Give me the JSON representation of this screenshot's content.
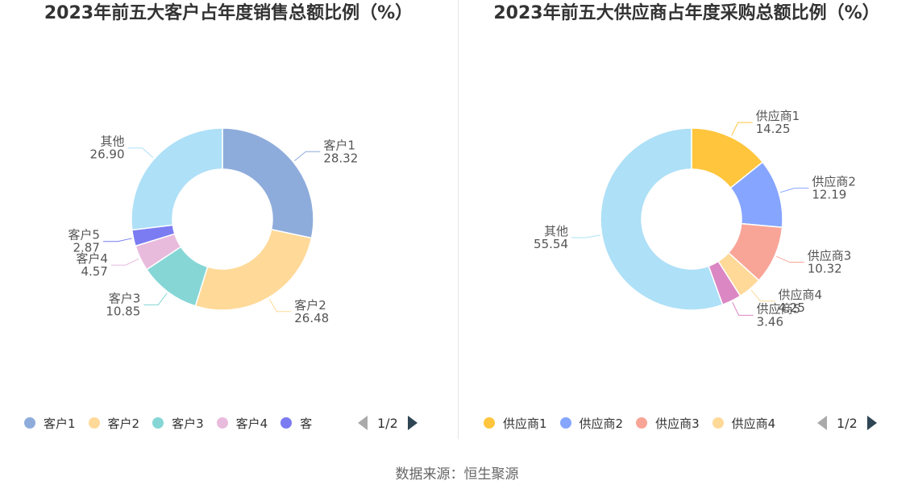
{
  "source_label": "数据来源：恒生聚源",
  "colors": {
    "left": [
      "#8eacdb",
      "#ffd998",
      "#86d6d6",
      "#e8bbdd",
      "#7b7cf2",
      "#aee0f7"
    ],
    "right": [
      "#ffc53d",
      "#85a5ff",
      "#f8a598",
      "#ffd998",
      "#db87c4",
      "#aee0f7"
    ],
    "pager_active": "#2f4554",
    "pager_inactive": "#aaaaaa"
  },
  "icons": {
    "prev": "triangle-left-icon",
    "next": "triangle-right-icon"
  },
  "charts": [
    {
      "title": "2023年前五大客户占年度销售总额比例（%）",
      "legend": [
        "客户1",
        "客户2",
        "客户3",
        "客户4",
        "客"
      ],
      "page_indicator": "1/2"
    },
    {
      "title": "2023年前五大供应商占年度采购总额比例（%）",
      "legend": [
        "供应商1",
        "供应商2",
        "供应商3",
        "供应商4"
      ],
      "page_indicator": "1/2"
    }
  ],
  "chart_data": [
    {
      "type": "pie",
      "title": "2023年前五大客户占年度销售总额比例（%）",
      "categories": [
        "客户1",
        "客户2",
        "客户3",
        "客户4",
        "客户5",
        "其他"
      ],
      "values": [
        28.32,
        26.48,
        10.85,
        4.57,
        2.87,
        26.9
      ],
      "value_labels": [
        "28.32",
        "26.48",
        "10.85",
        "4.57",
        "2.87",
        "26.90"
      ],
      "legend_position": "bottom"
    },
    {
      "type": "pie",
      "title": "2023年前五大供应商占年度采购总额比例（%）",
      "categories": [
        "供应商1",
        "供应商2",
        "供应商3",
        "供应商4",
        "供应商5",
        "其他"
      ],
      "values": [
        14.25,
        12.19,
        10.32,
        4.25,
        3.46,
        55.54
      ],
      "value_labels": [
        "14.25",
        "12.19",
        "10.32",
        "4.25",
        "3.46",
        "55.54"
      ],
      "legend_position": "bottom"
    }
  ]
}
